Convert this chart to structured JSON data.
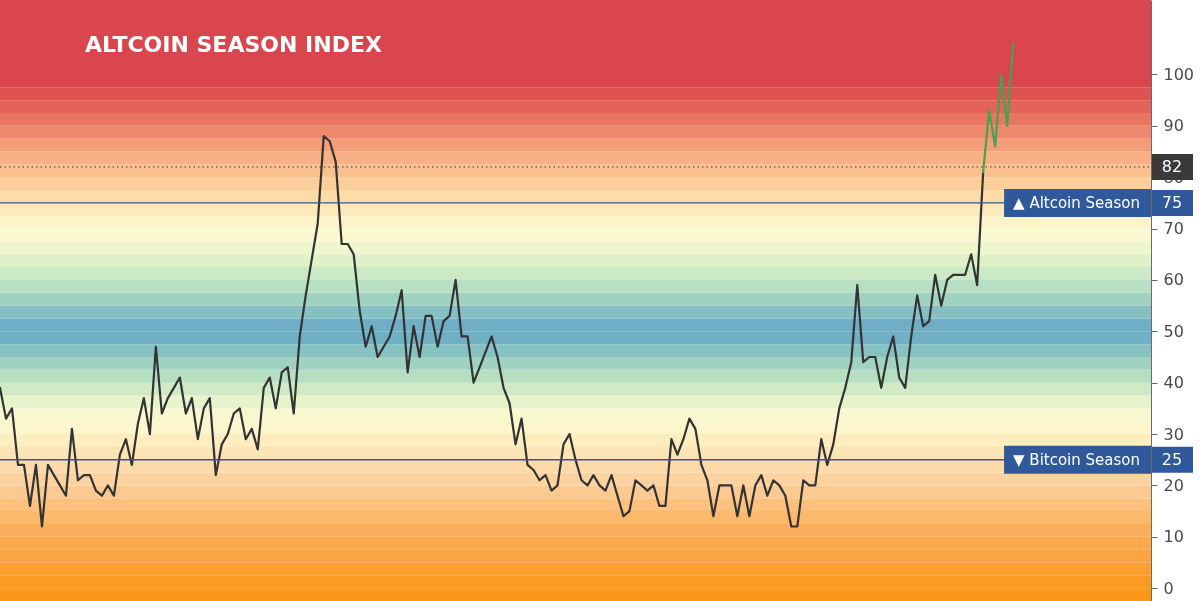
{
  "chart_data": {
    "type": "line",
    "title": "ALTCOIN SEASON INDEX",
    "categories": [
      null,
      null,
      null,
      null,
      null,
      null,
      null,
      null,
      null,
      null,
      null,
      null,
      null,
      null,
      null,
      null,
      null,
      null,
      null,
      null,
      null,
      null,
      null,
      null,
      null,
      null,
      null,
      null,
      null,
      null,
      null,
      null,
      null,
      null,
      null,
      null,
      null,
      null,
      null,
      null,
      null,
      null,
      null,
      null,
      null,
      null,
      null,
      null,
      null,
      null,
      null,
      null,
      null,
      null,
      null,
      null,
      null,
      null,
      null,
      null,
      null,
      null,
      null,
      null,
      null,
      null,
      null,
      null,
      null,
      null,
      null,
      null,
      null,
      null,
      null,
      null,
      null,
      null,
      null,
      null,
      null,
      null,
      null,
      null,
      null,
      null,
      null,
      null,
      null,
      null,
      null,
      null,
      null,
      null,
      null,
      null,
      null,
      null,
      null,
      null,
      null,
      null,
      null,
      null,
      null,
      null,
      null,
      null,
      null,
      null,
      null,
      null,
      null,
      null,
      null,
      null,
      null,
      null,
      null,
      null,
      null,
      null,
      null,
      null,
      null,
      null,
      null,
      null,
      null,
      null,
      null,
      null,
      null,
      null,
      null,
      null,
      null,
      null,
      null,
      null,
      null,
      null,
      null,
      null,
      null,
      null,
      null,
      null,
      null,
      null,
      null,
      null,
      null,
      null,
      null,
      null,
      null,
      null,
      null,
      null,
      null,
      null,
      null,
      null,
      null,
      null,
      null,
      null,
      null,
      null,
      null,
      null,
      null,
      null,
      null,
      null,
      null,
      null,
      null,
      null,
      null,
      null,
      null,
      null,
      null,
      null,
      null,
      null,
      null,
      null,
      null,
      null,
      null
    ],
    "series": [
      {
        "color": "#333333",
        "values": [
          39,
          33,
          35,
          24,
          24,
          16,
          24,
          12,
          24,
          22,
          20,
          18,
          31,
          21,
          22,
          22,
          19,
          18,
          20,
          18,
          26,
          29,
          24,
          32,
          37,
          30,
          47,
          34,
          37,
          39,
          41,
          34,
          37,
          29,
          35,
          37,
          22,
          28,
          30,
          34,
          35,
          29,
          31,
          27,
          39,
          41,
          35,
          42,
          43,
          34,
          49,
          57,
          64,
          71,
          88,
          87,
          83,
          67,
          67,
          65,
          54,
          47,
          51,
          45,
          47,
          49,
          53,
          58,
          42,
          51,
          45,
          53,
          53,
          47,
          52,
          53,
          60,
          49,
          49,
          40,
          43,
          46,
          49,
          45,
          39,
          36,
          28,
          33,
          24,
          23,
          21,
          22,
          19,
          20,
          28,
          30,
          25,
          21,
          20,
          22,
          20,
          19,
          22,
          18,
          14,
          15,
          21,
          20,
          19,
          20,
          16,
          16,
          29,
          26,
          29,
          33,
          31,
          24,
          21,
          14,
          20,
          20,
          20,
          14,
          20,
          14,
          20,
          22,
          18,
          21,
          20,
          18,
          12,
          12,
          21,
          20,
          20,
          29,
          24,
          28,
          35,
          39,
          44,
          59,
          44,
          45,
          45,
          39,
          45,
          49,
          41,
          39,
          49,
          57,
          51,
          52,
          61,
          55,
          60,
          61,
          61,
          61,
          65,
          59,
          81,
          null,
          null,
          null,
          null,
          null,
          null,
          null,
          null,
          null,
          null,
          null,
          null,
          null,
          null,
          null,
          null,
          null,
          null,
          null,
          null,
          null,
          null,
          null,
          null,
          null,
          null,
          null,
          null
        ]
      },
      {
        "color": "#45a34f",
        "values": [
          null,
          null,
          null,
          null,
          null,
          null,
          null,
          null,
          null,
          null,
          null,
          null,
          null,
          null,
          null,
          null,
          null,
          null,
          null,
          null,
          null,
          null,
          null,
          null,
          null,
          null,
          null,
          null,
          null,
          null,
          null,
          null,
          null,
          null,
          null,
          null,
          null,
          null,
          null,
          null,
          null,
          null,
          null,
          null,
          null,
          null,
          null,
          null,
          null,
          null,
          null,
          null,
          null,
          null,
          null,
          null,
          null,
          null,
          null,
          null,
          null,
          null,
          null,
          null,
          null,
          null,
          null,
          null,
          null,
          null,
          null,
          null,
          null,
          null,
          null,
          null,
          null,
          null,
          null,
          null,
          null,
          null,
          null,
          null,
          null,
          null,
          null,
          null,
          null,
          null,
          null,
          null,
          null,
          null,
          null,
          null,
          null,
          null,
          null,
          null,
          null,
          null,
          null,
          null,
          null,
          null,
          null,
          null,
          null,
          null,
          null,
          null,
          null,
          null,
          null,
          null,
          null,
          null,
          null,
          null,
          null,
          null,
          null,
          null,
          null,
          null,
          null,
          null,
          null,
          null,
          null,
          null,
          null,
          null,
          null,
          null,
          null,
          null,
          null,
          null,
          null,
          null,
          null,
          null,
          null,
          null,
          null,
          null,
          null,
          null,
          null,
          null,
          null,
          null,
          null,
          null,
          null,
          null,
          null,
          null,
          null,
          null,
          null,
          null,
          81,
          93,
          86,
          100,
          90,
          106,
          null,
          null,
          null,
          null,
          null,
          null,
          null,
          null,
          null,
          null,
          null,
          null,
          null,
          null,
          null,
          null,
          null,
          null,
          null,
          null,
          null,
          null,
          null
        ]
      }
    ],
    "ylim": [
      -2.5,
      114.5
    ],
    "yticks": [
      0,
      10,
      20,
      25,
      30,
      40,
      50,
      60,
      70,
      75,
      80,
      82,
      90,
      100
    ],
    "tick_labels": "y",
    "ref_lines": [
      {
        "axis": "y",
        "value": 82,
        "color": "#3a3a3a",
        "line_style": "dotted"
      },
      {
        "axis": "y",
        "value": 75,
        "label": "▲ Altcoin Season",
        "color": "#30599b"
      },
      {
        "axis": "y",
        "value": 25,
        "label": "▼ Bitcoin Season",
        "color": "#30599b"
      }
    ],
    "bands": [
      {
        "axis": "y",
        "from": -2.5,
        "to": 0,
        "color": "#fd9719"
      },
      {
        "axis": "y",
        "from": 0,
        "to": 2.5,
        "color": "#fd9a22"
      },
      {
        "axis": "y",
        "from": 2.5,
        "to": 5,
        "color": "#fd9f33"
      },
      {
        "axis": "y",
        "from": 5,
        "to": 7.5,
        "color": "#fca43f"
      },
      {
        "axis": "y",
        "from": 7.5,
        "to": 10,
        "color": "#fca94d"
      },
      {
        "axis": "y",
        "from": 10,
        "to": 12.5,
        "color": "#fcaf5a"
      },
      {
        "axis": "y",
        "from": 12.5,
        "to": 15,
        "color": "#fcb86b"
      },
      {
        "axis": "y",
        "from": 15,
        "to": 17.5,
        "color": "#fcc17f"
      },
      {
        "axis": "y",
        "from": 17.5,
        "to": 20,
        "color": "#fcca91"
      },
      {
        "axis": "y",
        "from": 20,
        "to": 22.5,
        "color": "#fcd39f"
      },
      {
        "axis": "y",
        "from": 22.5,
        "to": 25,
        "color": "#fcdaaa"
      },
      {
        "axis": "y",
        "from": 25,
        "to": 27.5,
        "color": "#fde4b4"
      },
      {
        "axis": "y",
        "from": 27.5,
        "to": 30,
        "color": "#fdedbf"
      },
      {
        "axis": "y",
        "from": 30,
        "to": 32.5,
        "color": "#fdf6cc"
      },
      {
        "axis": "y",
        "from": 32.5,
        "to": 35,
        "color": "#f8f8d0"
      },
      {
        "axis": "y",
        "from": 35,
        "to": 37.5,
        "color": "#e6f3cb"
      },
      {
        "axis": "y",
        "from": 37.5,
        "to": 40,
        "color": "#cfeac5"
      },
      {
        "axis": "y",
        "from": 40,
        "to": 42.5,
        "color": "#b6dfc2"
      },
      {
        "axis": "y",
        "from": 42.5,
        "to": 45,
        "color": "#9fd2c1"
      },
      {
        "axis": "y",
        "from": 45,
        "to": 47.5,
        "color": "#86c2c2"
      },
      {
        "axis": "y",
        "from": 47.5,
        "to": 50,
        "color": "#70b0c5"
      },
      {
        "axis": "y",
        "from": 50,
        "to": 52.5,
        "color": "#70aec6"
      },
      {
        "axis": "y",
        "from": 52.5,
        "to": 55,
        "color": "#86c0c4"
      },
      {
        "axis": "y",
        "from": 55,
        "to": 57.5,
        "color": "#9fd2c2"
      },
      {
        "axis": "y",
        "from": 57.5,
        "to": 60,
        "color": "#b6dfc3"
      },
      {
        "axis": "y",
        "from": 60,
        "to": 62.5,
        "color": "#cbe9c5"
      },
      {
        "axis": "y",
        "from": 62.5,
        "to": 65,
        "color": "#dff1c9"
      },
      {
        "axis": "y",
        "from": 65,
        "to": 67.5,
        "color": "#eef6cc"
      },
      {
        "axis": "y",
        "from": 67.5,
        "to": 70,
        "color": "#f9f8d0"
      },
      {
        "axis": "y",
        "from": 70,
        "to": 72.5,
        "color": "#fdf3c8"
      },
      {
        "axis": "y",
        "from": 72.5,
        "to": 75,
        "color": "#fde8ba"
      },
      {
        "axis": "y",
        "from": 75,
        "to": 77.5,
        "color": "#fddcaa"
      },
      {
        "axis": "y",
        "from": 77.5,
        "to": 80,
        "color": "#fccf9a"
      },
      {
        "axis": "y",
        "from": 80,
        "to": 82.5,
        "color": "#fac08e"
      },
      {
        "axis": "y",
        "from": 82.5,
        "to": 85,
        "color": "#f8b084"
      },
      {
        "axis": "y",
        "from": 85,
        "to": 87.5,
        "color": "#f49d79"
      },
      {
        "axis": "y",
        "from": 87.5,
        "to": 90,
        "color": "#ef896d"
      },
      {
        "axis": "y",
        "from": 90,
        "to": 92.5,
        "color": "#ea7662"
      },
      {
        "axis": "y",
        "from": 92.5,
        "to": 95,
        "color": "#e46358"
      },
      {
        "axis": "y",
        "from": 95,
        "to": 97.5,
        "color": "#de5351"
      },
      {
        "axis": "y",
        "from": 97.5,
        "to": 114.5,
        "color": "#da464e"
      }
    ]
  }
}
